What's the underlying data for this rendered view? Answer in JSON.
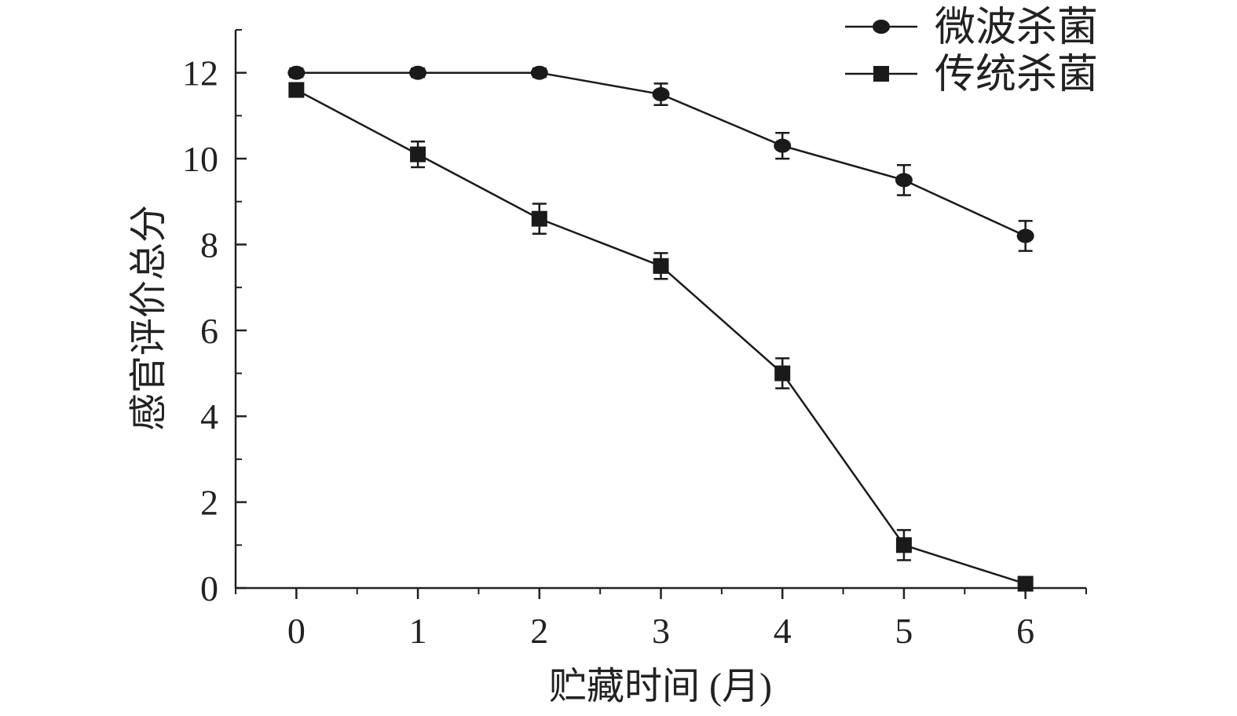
{
  "chart_data": {
    "type": "line",
    "xlabel": "贮藏时间 (月)",
    "ylabel": "感官评价总分",
    "xlim": [
      -0.5,
      6.5
    ],
    "ylim": [
      0,
      13
    ],
    "x": [
      0,
      1,
      2,
      3,
      4,
      5,
      6
    ],
    "x_ticks": [
      0,
      1,
      2,
      3,
      4,
      5,
      6
    ],
    "x_tick_labels": [
      "0",
      "1",
      "2",
      "3",
      "4",
      "5",
      "6"
    ],
    "y_ticks": [
      0,
      2,
      4,
      6,
      8,
      10,
      12
    ],
    "y_tick_labels": [
      "0",
      "2",
      "4",
      "6",
      "8",
      "10",
      "12"
    ],
    "grid": false,
    "legend_position": "top-right",
    "series": [
      {
        "name": "微波杀菌",
        "marker": "circle",
        "color": "#1a1a1a",
        "values": [
          12.0,
          12.0,
          12.0,
          11.5,
          10.3,
          9.5,
          8.2
        ],
        "errors": [
          0.1,
          0.1,
          0.1,
          0.25,
          0.3,
          0.35,
          0.35
        ]
      },
      {
        "name": "传统杀菌",
        "marker": "square",
        "color": "#1a1a1a",
        "values": [
          11.6,
          10.1,
          8.6,
          7.5,
          5.0,
          1.0,
          0.1
        ],
        "errors": [
          0.1,
          0.3,
          0.35,
          0.3,
          0.35,
          0.35,
          0.1
        ]
      }
    ]
  }
}
